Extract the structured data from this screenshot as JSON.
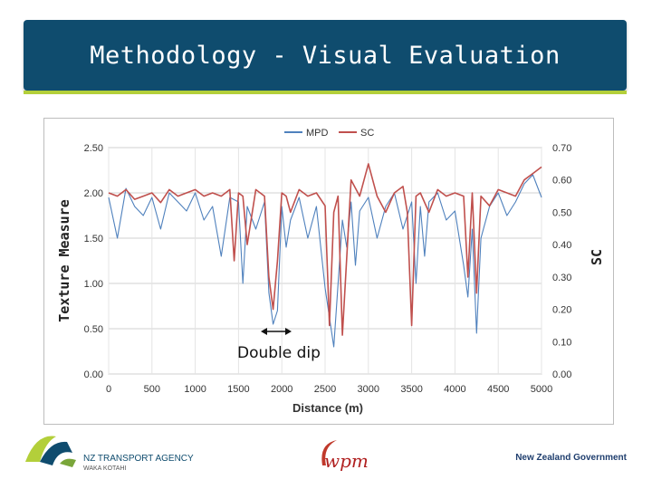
{
  "slide": {
    "title": "Methodology - Visual Evaluation",
    "theme_color": "#0f4c6e",
    "accent_color": "#b3cf3a"
  },
  "chart_data": {
    "type": "line",
    "title": "",
    "xlabel": "Distance (m)",
    "ylabel": "Texture Measure",
    "y2label": "SC",
    "legend": "top-center",
    "grid": true,
    "x_tick_labels": [
      "0",
      "500",
      "1000",
      "1500",
      "2000",
      "2500",
      "3000",
      "3500",
      "4000",
      "4500",
      "5000"
    ],
    "x_range": [
      0,
      5000
    ],
    "y_ticks": [
      "0.00",
      "0.50",
      "1.00",
      "1.50",
      "2.00",
      "2.50"
    ],
    "ylim": [
      0,
      2.5
    ],
    "y2_ticks": [
      "0.00",
      "0.10",
      "0.20",
      "0.30",
      "0.40",
      "0.50",
      "0.60",
      "0.70"
    ],
    "y2lim": [
      0,
      0.7
    ],
    "series": [
      {
        "name": "MPD",
        "axis": "left",
        "color": "#4f81bd",
        "x": [
          0,
          100,
          200,
          300,
          400,
          500,
          600,
          700,
          800,
          900,
          1000,
          1100,
          1200,
          1300,
          1400,
          1500,
          1550,
          1600,
          1700,
          1800,
          1850,
          1900,
          1950,
          2000,
          2050,
          2100,
          2200,
          2300,
          2400,
          2500,
          2600,
          2700,
          2750,
          2800,
          2850,
          2900,
          3000,
          3100,
          3200,
          3300,
          3400,
          3500,
          3550,
          3600,
          3650,
          3700,
          3800,
          3900,
          4000,
          4100,
          4150,
          4200,
          4250,
          4300,
          4400,
          4500,
          4600,
          4700,
          4800,
          4900,
          5000
        ],
        "values": [
          1.95,
          1.5,
          2.05,
          1.85,
          1.75,
          1.95,
          1.6,
          2.0,
          1.9,
          1.8,
          2.0,
          1.7,
          1.85,
          1.3,
          1.95,
          1.9,
          1.0,
          1.85,
          1.6,
          1.9,
          0.9,
          0.55,
          0.7,
          1.85,
          1.4,
          1.7,
          1.95,
          1.5,
          1.85,
          0.95,
          0.3,
          1.7,
          1.4,
          1.9,
          1.2,
          1.8,
          1.95,
          1.5,
          1.85,
          2.0,
          1.6,
          1.9,
          1.0,
          1.85,
          1.3,
          1.9,
          2.0,
          1.7,
          1.8,
          1.2,
          0.85,
          1.6,
          0.45,
          1.5,
          1.85,
          2.0,
          1.75,
          1.9,
          2.1,
          2.2,
          1.95
        ]
      },
      {
        "name": "SC",
        "axis": "right",
        "color": "#c0504d",
        "x": [
          0,
          100,
          200,
          300,
          400,
          500,
          600,
          700,
          800,
          900,
          1000,
          1100,
          1200,
          1300,
          1400,
          1450,
          1500,
          1550,
          1600,
          1700,
          1800,
          1850,
          1900,
          1950,
          2000,
          2050,
          2100,
          2200,
          2300,
          2400,
          2500,
          2550,
          2600,
          2650,
          2700,
          2800,
          2900,
          3000,
          3100,
          3200,
          3300,
          3400,
          3450,
          3500,
          3550,
          3600,
          3700,
          3800,
          3900,
          4000,
          4100,
          4150,
          4200,
          4250,
          4300,
          4400,
          4500,
          4600,
          4700,
          4800,
          4900,
          5000
        ],
        "values": [
          0.56,
          0.55,
          0.57,
          0.54,
          0.55,
          0.56,
          0.53,
          0.57,
          0.55,
          0.56,
          0.57,
          0.55,
          0.56,
          0.55,
          0.57,
          0.35,
          0.56,
          0.55,
          0.4,
          0.57,
          0.55,
          0.3,
          0.2,
          0.35,
          0.56,
          0.55,
          0.5,
          0.57,
          0.55,
          0.56,
          0.52,
          0.15,
          0.5,
          0.55,
          0.12,
          0.6,
          0.55,
          0.65,
          0.55,
          0.5,
          0.56,
          0.58,
          0.5,
          0.15,
          0.55,
          0.56,
          0.5,
          0.57,
          0.55,
          0.56,
          0.55,
          0.3,
          0.56,
          0.25,
          0.55,
          0.52,
          0.57,
          0.56,
          0.55,
          0.6,
          0.62,
          0.64
        ]
      }
    ],
    "annotations": [
      {
        "text": "Double dip",
        "x_from": 1800,
        "x_to": 2000
      }
    ]
  },
  "footer": {
    "left_logo_name": "NZ TRANSPORT AGENCY",
    "left_logo_sub": "WAKA KOTAHI",
    "center_logo_text": "wpm",
    "right_logo_text": "New Zealand Government"
  }
}
